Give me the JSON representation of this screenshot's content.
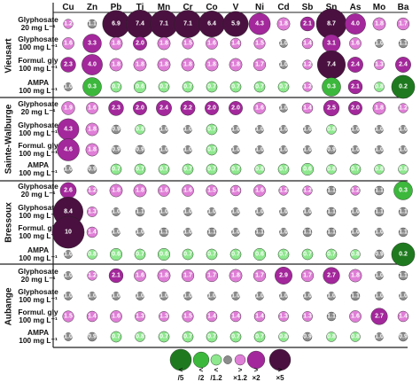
{
  "chart_data": {
    "type": "bubble",
    "title": "",
    "elements": [
      "Cu",
      "Zn",
      "Pb",
      "Ti",
      "Mn",
      "Cr",
      "Co",
      "V",
      "Ni",
      "Cd",
      "Sb",
      "Sn",
      "As",
      "Mo",
      "Ba"
    ],
    "treatments": [
      {
        "key": "g20",
        "line1": "Glyphosate",
        "line2": "20 mg L⁻¹"
      },
      {
        "key": "g100",
        "line1": "Glyphosate",
        "line2": "100 mg L⁻¹"
      },
      {
        "key": "f100",
        "line1": "Formul. gly",
        "line2": "100 mg L⁻¹"
      },
      {
        "key": "ampa",
        "line1": "AMPA",
        "line2": "100 mg L⁻¹"
      }
    ],
    "sites": [
      {
        "name": "Vieusart",
        "rows": [
          [
            1.2,
            1.1,
            6.9,
            7.4,
            7.1,
            7.1,
            6.4,
            5.9,
            4.3,
            1.8,
            2.1,
            8.7,
            4.0,
            1.8,
            1.7
          ],
          [
            1.6,
            3.3,
            1.8,
            2.0,
            1.8,
            1.5,
            1.6,
            1.4,
            1.5,
            1.0,
            1.4,
            3.1,
            1.6,
            1.0,
            1.1
          ],
          [
            2.3,
            4.0,
            1.8,
            1.8,
            1.8,
            1.8,
            1.8,
            1.8,
            1.7,
            1.0,
            1.2,
            7.4,
            2.4,
            1.3,
            2.4
          ],
          [
            1.0,
            0.3,
            0.7,
            0.6,
            0.7,
            0.7,
            0.7,
            0.7,
            0.7,
            0.7,
            1.2,
            0.3,
            2.1,
            0.8,
            0.2
          ]
        ]
      },
      {
        "name": "Sainte-Walburge",
        "rows": [
          [
            1.9,
            1.6,
            2.3,
            2.0,
            2.4,
            2.2,
            2.0,
            2.0,
            1.6,
            1.0,
            1.4,
            2.5,
            2.0,
            1.8,
            1.2
          ],
          [
            4.3,
            1.8,
            0.9,
            0.8,
            1.0,
            1.0,
            0.7,
            1.0,
            1.0,
            1.0,
            1.0,
            0.8,
            1.0,
            1.0,
            1.0
          ],
          [
            4.6,
            1.8,
            0.9,
            0.9,
            1.0,
            1.0,
            0.7,
            1.0,
            1.0,
            1.0,
            1.0,
            0.9,
            1.0,
            1.0,
            1.0
          ],
          [
            1.0,
            0.9,
            0.7,
            0.7,
            0.7,
            0.7,
            0.7,
            0.7,
            0.8,
            0.7,
            0.6,
            0.8,
            0.7,
            0.8,
            0.8
          ]
        ]
      },
      {
        "name": "Bressoux",
        "rows": [
          [
            2.6,
            1.2,
            1.8,
            1.8,
            1.6,
            1.6,
            1.5,
            1.4,
            1.6,
            1.2,
            1.2,
            1.1,
            1.2,
            1.1,
            0.3
          ],
          [
            8.4,
            1.3,
            1.0,
            1.1,
            1.0,
            1.0,
            1.0,
            1.0,
            1.0,
            1.0,
            1.0,
            1.1,
            1.0,
            1.1,
            1.1
          ],
          [
            10,
            1.4,
            1.0,
            1.0,
            1.1,
            1.0,
            1.1,
            1.0,
            1.1,
            1.0,
            1.1,
            1.1,
            1.0,
            1.0,
            1.1
          ],
          [
            1.0,
            0.8,
            0.6,
            0.7,
            0.6,
            0.7,
            0.7,
            0.7,
            0.6,
            0.7,
            0.7,
            0.7,
            0.8,
            0.9,
            0.2
          ]
        ]
      },
      {
        "name": "Aubange",
        "rows": [
          [
            1.0,
            1.2,
            2.1,
            1.6,
            1.8,
            1.7,
            1.7,
            1.8,
            1.7,
            2.9,
            1.7,
            2.7,
            1.8,
            1.0,
            1.1
          ],
          [
            1.0,
            1.0,
            1.0,
            1.0,
            1.0,
            1.0,
            1.0,
            1.0,
            1.0,
            1.0,
            1.0,
            1.0,
            1.1,
            1.0,
            1.0
          ],
          [
            1.5,
            1.4,
            1.6,
            1.3,
            1.3,
            1.5,
            1.4,
            1.4,
            1.4,
            1.3,
            1.3,
            1.1,
            1.6,
            2.7,
            1.4
          ],
          [
            1.0,
            0.9,
            0.7,
            0.8,
            0.7,
            0.7,
            0.7,
            0.7,
            0.7,
            0.8,
            0.9,
            0.8,
            0.8,
            1.0,
            0.9
          ]
        ]
      }
    ],
    "legend": {
      "top": [
        "<",
        "<",
        "<",
        "",
        ">",
        ">",
        ">"
      ],
      "bottom": [
        "/5",
        "/2",
        "/1.2",
        "",
        "×1.2",
        "×2",
        "×5"
      ]
    },
    "colors": {
      "dark_green": "#1f7a1f",
      "green": "#3cb83c",
      "light_green": "#8ee88e",
      "grey": "#8c8c8c",
      "light_purple": "#e07fd7",
      "purple": "#a3289b",
      "dark_purple": "#4a1140"
    }
  }
}
